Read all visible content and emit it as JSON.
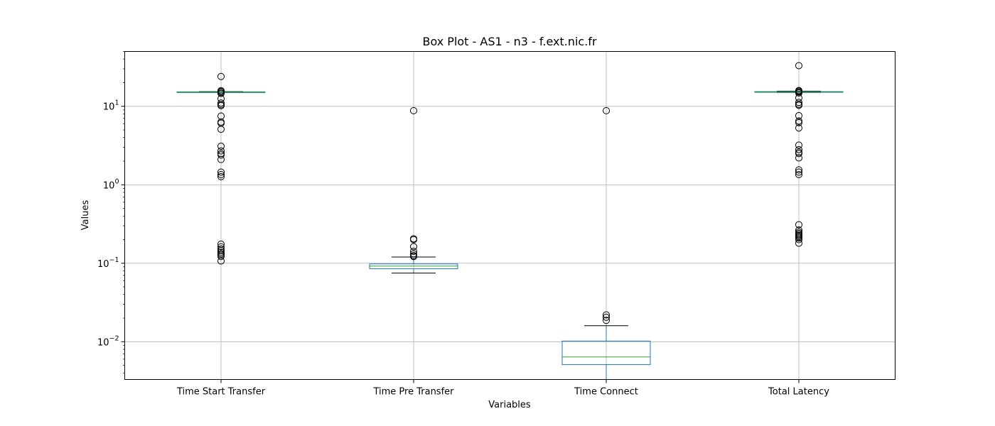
{
  "chart_data": {
    "type": "box",
    "title": "Box Plot - AS1 - n3 - f.ext.nic.fr",
    "xlabel": "Variables",
    "ylabel": "Values",
    "yscale": "log",
    "ylim": [
      0.0033,
      50
    ],
    "grid": true,
    "y_ticks": [
      {
        "value": 0.01,
        "base": "10",
        "exp": "−2"
      },
      {
        "value": 0.1,
        "base": "10",
        "exp": "−1"
      },
      {
        "value": 1,
        "base": "10",
        "exp": "0"
      },
      {
        "value": 10,
        "base": "10",
        "exp": "1"
      }
    ],
    "categories": [
      "Time Start Transfer",
      "Time Pre Transfer",
      "Time Connect",
      "Total Latency"
    ],
    "boxes": [
      {
        "name": "Time Start Transfer",
        "whisker_low": 15.0,
        "q1": 15.1,
        "median": 15.2,
        "q3": 15.3,
        "whisker_high": 15.4,
        "outliers": [
          24,
          15.8,
          15.5,
          15.0,
          14.6,
          12.5,
          11.0,
          10.5,
          10.2,
          7.5,
          6.3,
          6.1,
          5.1,
          3.1,
          2.7,
          2.5,
          2.4,
          2.1,
          1.45,
          1.35,
          1.27,
          0.175,
          0.162,
          0.152,
          0.145,
          0.138,
          0.132,
          0.127,
          0.122,
          0.107
        ]
      },
      {
        "name": "Time Pre Transfer",
        "whisker_low": 0.075,
        "q1": 0.085,
        "median": 0.092,
        "q3": 0.098,
        "whisker_high": 0.12,
        "outliers": [
          8.8,
          0.205,
          0.2,
          0.163,
          0.142,
          0.132,
          0.125,
          0.122
        ]
      },
      {
        "name": "Time Connect",
        "whisker_low": 0.0033,
        "q1": 0.0051,
        "median": 0.0064,
        "q3": 0.0102,
        "whisker_high": 0.016,
        "outliers": [
          8.8,
          0.022,
          0.0205,
          0.0187
        ]
      },
      {
        "name": "Total Latency",
        "whisker_low": 15.0,
        "q1": 15.1,
        "median": 15.2,
        "q3": 15.4,
        "whisker_high": 15.6,
        "outliers": [
          33,
          15.9,
          15.6,
          15.2,
          14.8,
          12.8,
          11.2,
          10.6,
          10.3,
          7.6,
          6.5,
          6.2,
          5.3,
          3.2,
          2.8,
          2.6,
          2.5,
          2.2,
          1.55,
          1.45,
          1.35,
          0.31,
          0.265,
          0.25,
          0.24,
          0.232,
          0.225,
          0.218,
          0.21,
          0.2,
          0.18
        ]
      }
    ],
    "colors": {
      "box": "#1f77b4",
      "median": "#2ca02c",
      "whisker": "#1f77b4",
      "cap": "#000000",
      "outlier": "#000000",
      "grid": "#b0b0b0",
      "axis": "#000000"
    }
  }
}
